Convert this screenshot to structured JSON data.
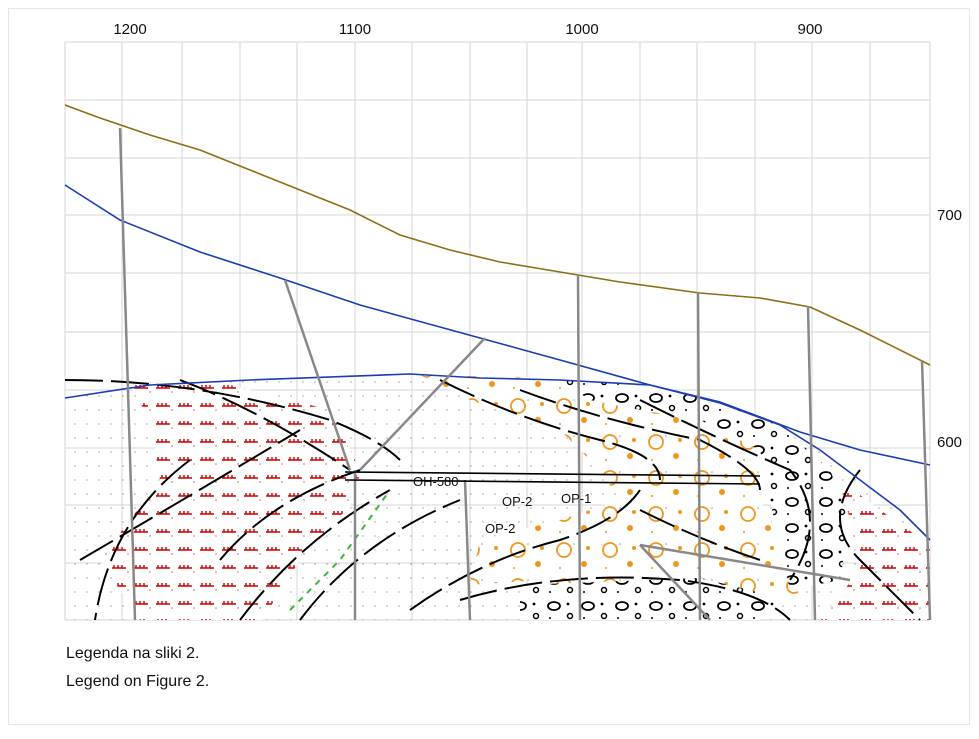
{
  "axis": {
    "top_labels": [
      "1200",
      "1100",
      "1000",
      "900"
    ],
    "right_labels": [
      "700",
      "600"
    ]
  },
  "labels": {
    "tunnel": "OH-580",
    "boreholes": [
      "OP-2",
      "OP-1",
      "OP-2"
    ]
  },
  "caption": [
    "Legenda na sliki 2.",
    "Legend on Figure 2."
  ]
}
